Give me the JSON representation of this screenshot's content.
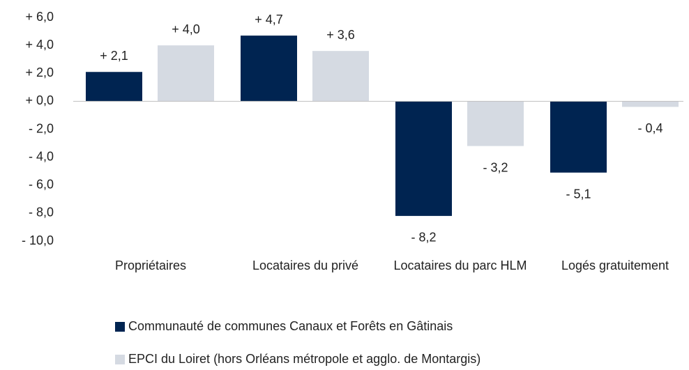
{
  "chart_data": {
    "type": "bar",
    "categories": [
      "Propriétaires",
      "Locataires du privé",
      "Locataires du parc HLM",
      "Logés gratuitement"
    ],
    "series": [
      {
        "name": "Communauté de communes Canaux et Forêts en Gâtinais",
        "color": "#002451",
        "values": [
          2.1,
          4.7,
          -8.2,
          -5.1
        ],
        "value_labels": [
          "+ 2,1",
          "+ 4,7",
          "- 8,2",
          "- 5,1"
        ]
      },
      {
        "name": "EPCI du Loiret (hors Orléans métropole et agglo. de Montargis)",
        "color": "#d5dae2",
        "values": [
          4.0,
          3.6,
          -3.2,
          -0.4
        ],
        "value_labels": [
          "+ 4,0",
          "+ 3,6",
          "- 3,2",
          "- 0,4"
        ]
      }
    ],
    "ylim": [
      -10,
      6
    ],
    "yticks": [
      {
        "value": 6,
        "label": "+ 6,0"
      },
      {
        "value": 4,
        "label": "+ 4,0"
      },
      {
        "value": 2,
        "label": "+ 2,0"
      },
      {
        "value": 0,
        "label": "+ 0,0"
      },
      {
        "value": -2,
        "label": "- 2,0"
      },
      {
        "value": -4,
        "label": "- 4,0"
      },
      {
        "value": -6,
        "label": "- 6,0"
      },
      {
        "value": -8,
        "label": "- 8,0"
      },
      {
        "value": -10,
        "label": "- 10,0"
      }
    ],
    "grid": false
  }
}
